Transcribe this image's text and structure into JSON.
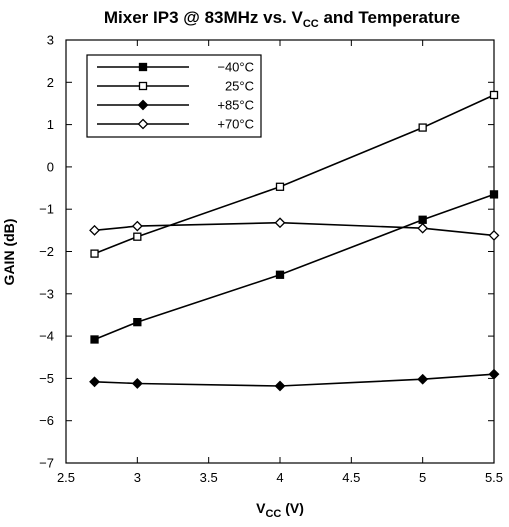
{
  "chart_data": {
    "type": "line",
    "title": "Mixer IP3 @ 83MHz vs. V",
    "title_sub": "CC",
    "title_suffix": " and Temperature",
    "xlabel": "V",
    "xlabel_sub": "CC",
    "xlabel_suffix": " (V)",
    "ylabel": "GAIN (dB)",
    "xlim": [
      2.5,
      5.5
    ],
    "ylim": [
      -7,
      3
    ],
    "x_ticks": [
      "2.5",
      "3",
      "3.5",
      "4",
      "4.5",
      "5",
      "5.5"
    ],
    "y_ticks": [
      "3",
      "2",
      "1",
      "0",
      "−1",
      "−2",
      "−3",
      "−4",
      "−5",
      "−6",
      "−7"
    ],
    "grid": false,
    "legend_position": "top-left",
    "series": [
      {
        "name": "−40°C",
        "marker": "filled-square",
        "x": [
          2.7,
          3.0,
          4.0,
          5.0,
          5.5
        ],
        "y": [
          -4.08,
          -3.67,
          -2.55,
          -1.25,
          -0.65
        ]
      },
      {
        "name": "25°C",
        "marker": "open-square",
        "x": [
          2.7,
          3.0,
          4.0,
          5.0,
          5.5
        ],
        "y": [
          -2.05,
          -1.65,
          -0.47,
          0.93,
          1.7
        ]
      },
      {
        "name": "+85°C",
        "marker": "filled-diamond",
        "x": [
          2.7,
          3.0,
          4.0,
          5.0,
          5.5
        ],
        "y": [
          -5.08,
          -5.12,
          -5.18,
          -5.02,
          -4.9
        ]
      },
      {
        "name": "+70°C",
        "marker": "open-diamond",
        "x": [
          2.7,
          3.0,
          4.0,
          5.0,
          5.5
        ],
        "y": [
          -1.5,
          -1.4,
          -1.32,
          -1.45,
          -1.62
        ]
      }
    ]
  }
}
